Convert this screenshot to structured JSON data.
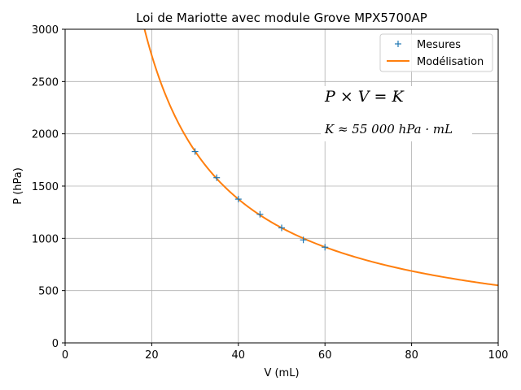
{
  "chart_data": {
    "type": "scatter",
    "title": "Loi de Mariotte avec module Grove MPX5700AP",
    "xlabel": "V (mL)",
    "ylabel": "P (hPa)",
    "xlim": [
      0,
      100
    ],
    "ylim": [
      0,
      3000
    ],
    "xticks": [
      "0",
      "20",
      "40",
      "60",
      "80",
      "100"
    ],
    "yticks": [
      "0",
      "500",
      "1000",
      "1500",
      "2000",
      "2500",
      "3000"
    ],
    "grid": true,
    "legend_position": "top-right",
    "series": [
      {
        "name": "Mesures",
        "kind": "markers",
        "marker": "plus",
        "color": "#1f77b4",
        "x": [
          30,
          35,
          40,
          45,
          50,
          55,
          60
        ],
        "y": [
          1830,
          1580,
          1375,
          1230,
          1100,
          985,
          915
        ]
      },
      {
        "name": "Modélisation",
        "kind": "line",
        "color": "#ff7f0e",
        "model": "P = K / V",
        "K": 55000,
        "x_from": 18,
        "x_to": 100
      }
    ],
    "annotations": {
      "equation": "P × V = K",
      "constant": "K ≈ 55 000 hPa · mL"
    }
  }
}
